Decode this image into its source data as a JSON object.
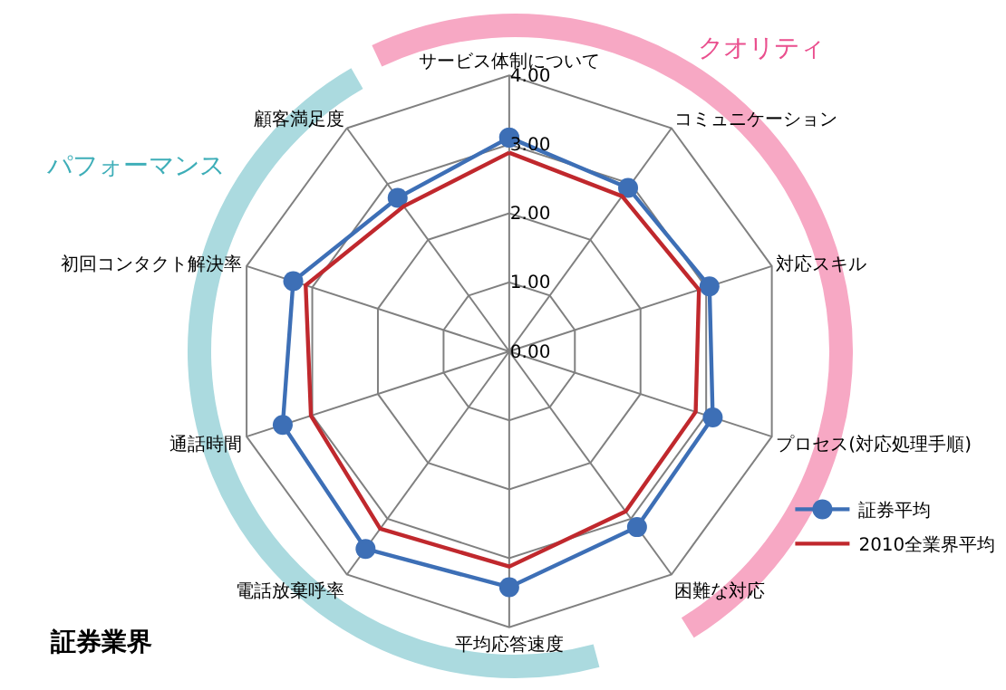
{
  "chart_data": {
    "type": "radar",
    "title": "証券業界",
    "categories": [
      "サービス体制について",
      "コミュニケーション",
      "対応スキル",
      "プロセス(対応処理手順)",
      "困難な対応",
      "平均応答速度",
      "電話放棄呼率",
      "通話時間",
      "初回コンタクト解決率",
      "顧客満足度"
    ],
    "series": [
      {
        "name": "証券平均",
        "color": "#3d6fb6",
        "marker": "circle",
        "values": [
          3.1,
          2.93,
          3.05,
          3.1,
          3.15,
          3.42,
          3.54,
          3.45,
          3.29,
          2.75
        ]
      },
      {
        "name": "2010全業界平均",
        "color": "#c0282d",
        "marker": "none",
        "values": [
          2.88,
          2.78,
          2.89,
          2.84,
          2.87,
          3.12,
          3.18,
          3.02,
          3.1,
          2.6
        ]
      }
    ],
    "ylim": [
      0,
      4
    ],
    "yticks": [
      {
        "value": 0,
        "label": "0.00"
      },
      {
        "value": 1,
        "label": "1.00"
      },
      {
        "value": 2,
        "label": "2.00"
      },
      {
        "value": 3,
        "label": "3.00"
      },
      {
        "value": 4,
        "label": "4.00"
      }
    ],
    "grid": true,
    "legend": "bottom right",
    "annotations": [
      "クオリティ",
      "パフォーマンス"
    ]
  }
}
